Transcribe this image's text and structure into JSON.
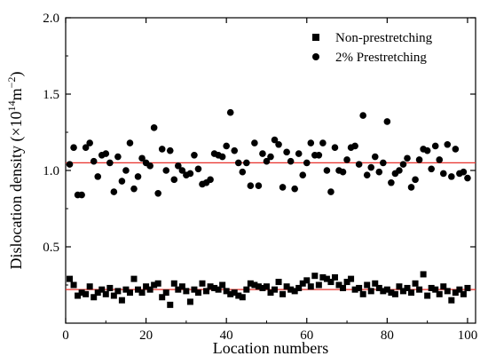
{
  "chart_data": {
    "type": "scatter",
    "title": "",
    "xlabel": "Location numbers",
    "ylabel_main": "Dislocation density (",
    "ylabel_times": "×10",
    "ylabel_exp": "14",
    "ylabel_unit": "m",
    "ylabel_unit_exp": "−2",
    "ylabel_close": ")",
    "xlim": [
      0,
      102
    ],
    "ylim": [
      0,
      2.0
    ],
    "xticks": [
      0,
      20,
      40,
      60,
      80,
      100
    ],
    "xtick_labels": [
      "0",
      "20",
      "40",
      "60",
      "80",
      "100"
    ],
    "yticks": [
      0.5,
      1.0,
      1.5,
      2.0
    ],
    "ytick_labels": [
      "0.5",
      "1.0",
      "1.5",
      "2.0"
    ],
    "legend_position": "top-right",
    "grid": false,
    "reference_lines": [
      {
        "series": "2% Prestretching",
        "y": 1.05,
        "color": "#e8302a"
      },
      {
        "series": "Non-prestretching",
        "y": 0.22,
        "color": "#e8302a"
      }
    ],
    "x": [
      1,
      2,
      3,
      4,
      5,
      6,
      7,
      8,
      9,
      10,
      11,
      12,
      13,
      14,
      15,
      16,
      17,
      18,
      19,
      20,
      21,
      22,
      23,
      24,
      25,
      26,
      27,
      28,
      29,
      30,
      31,
      32,
      33,
      34,
      35,
      36,
      37,
      38,
      39,
      40,
      41,
      42,
      43,
      44,
      45,
      46,
      47,
      48,
      49,
      50,
      51,
      52,
      53,
      54,
      55,
      56,
      57,
      58,
      59,
      60,
      61,
      62,
      63,
      64,
      65,
      66,
      67,
      68,
      69,
      70,
      71,
      72,
      73,
      74,
      75,
      76,
      77,
      78,
      79,
      80,
      81,
      82,
      83,
      84,
      85,
      86,
      87,
      88,
      89,
      90,
      91,
      92,
      93,
      94,
      95,
      96,
      97,
      98,
      99,
      100
    ],
    "series": [
      {
        "name": "Non-prestretching",
        "marker": "square",
        "color": "#000000",
        "values": [
          0.29,
          0.25,
          0.18,
          0.2,
          0.19,
          0.24,
          0.17,
          0.2,
          0.22,
          0.19,
          0.23,
          0.18,
          0.21,
          0.15,
          0.22,
          0.2,
          0.29,
          0.22,
          0.2,
          0.24,
          0.22,
          0.25,
          0.26,
          0.17,
          0.2,
          0.12,
          0.26,
          0.22,
          0.24,
          0.21,
          0.14,
          0.22,
          0.2,
          0.26,
          0.21,
          0.24,
          0.23,
          0.22,
          0.25,
          0.21,
          0.19,
          0.2,
          0.18,
          0.17,
          0.22,
          0.26,
          0.25,
          0.24,
          0.23,
          0.24,
          0.2,
          0.22,
          0.27,
          0.19,
          0.24,
          0.22,
          0.21,
          0.23,
          0.26,
          0.28,
          0.24,
          0.31,
          0.25,
          0.3,
          0.29,
          0.27,
          0.3,
          0.25,
          0.23,
          0.27,
          0.29,
          0.22,
          0.23,
          0.19,
          0.25,
          0.21,
          0.26,
          0.23,
          0.21,
          0.22,
          0.2,
          0.19,
          0.24,
          0.21,
          0.23,
          0.2,
          0.26,
          0.22,
          0.32,
          0.18,
          0.23,
          0.22,
          0.19,
          0.24,
          0.21,
          0.15,
          0.2,
          0.22,
          0.19,
          0.23
        ]
      },
      {
        "name": "2% Prestretching",
        "marker": "circle",
        "color": "#000000",
        "values": [
          1.04,
          1.15,
          0.84,
          0.84,
          1.15,
          1.18,
          1.06,
          0.96,
          1.1,
          1.11,
          1.05,
          0.86,
          1.09,
          0.93,
          1.0,
          1.18,
          0.88,
          0.96,
          1.08,
          1.05,
          1.03,
          1.28,
          0.85,
          1.14,
          1.0,
          1.13,
          0.94,
          1.03,
          1.0,
          0.97,
          0.98,
          1.1,
          1.01,
          0.91,
          0.92,
          0.94,
          1.11,
          1.1,
          1.09,
          1.16,
          1.38,
          1.13,
          1.05,
          0.99,
          1.05,
          0.9,
          1.18,
          0.9,
          1.11,
          1.06,
          1.09,
          1.2,
          1.17,
          0.89,
          1.12,
          1.06,
          0.88,
          1.11,
          0.97,
          1.05,
          1.18,
          1.1,
          1.1,
          1.18,
          1.0,
          0.86,
          1.15,
          1.0,
          0.99,
          1.07,
          1.15,
          1.16,
          1.04,
          1.36,
          0.97,
          1.02,
          1.09,
          0.99,
          1.05,
          1.32,
          0.92,
          0.98,
          1.0,
          1.04,
          1.08,
          0.89,
          0.94,
          1.07,
          1.14,
          1.13,
          1.01,
          1.16,
          1.07,
          0.98,
          1.17,
          0.96,
          1.14,
          0.98,
          0.99,
          0.95
        ]
      }
    ]
  }
}
